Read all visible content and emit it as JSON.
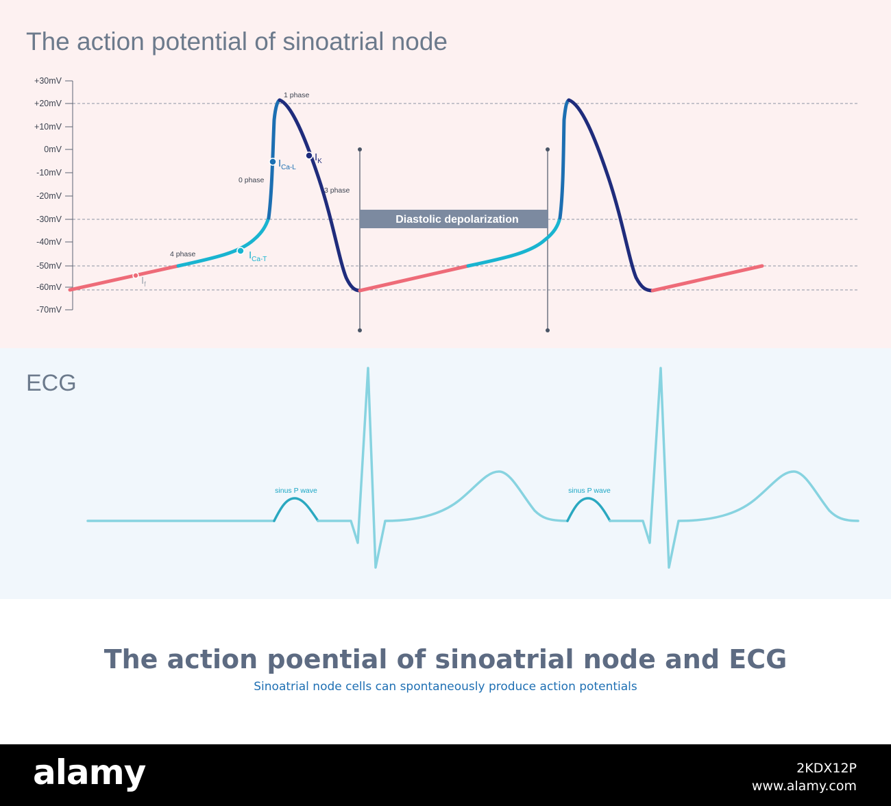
{
  "top_panel": {
    "title": "The action potential of sinoatrial node",
    "y_ticks": [
      "+30mV",
      "+20mV",
      "+10mV",
      "0mV",
      "-10mV",
      "-20mV",
      "-30mV",
      "-40mV",
      "-50mV",
      "-60mV",
      "-70mV"
    ],
    "phase_labels": {
      "phase_1": "1 phase",
      "phase_0": "0 phase",
      "phase_3": "3 phase",
      "phase_4": "4 phase"
    },
    "currents": {
      "ca_l": {
        "main": "I",
        "sub": "Ca-L"
      },
      "k": {
        "main": "I",
        "sub": "K"
      },
      "ca_t": {
        "main": "I",
        "sub": "Ca-T"
      },
      "f": {
        "main": "I",
        "sub": "f"
      }
    },
    "diastolic_label": "Diastolic depolarization"
  },
  "ecg_panel": {
    "title": "ECG",
    "p_wave_label_1": "sinus P wave",
    "p_wave_label_2": "sinus P wave"
  },
  "caption": {
    "title": "The action poential of sinoatrial node and ECG",
    "subtitle": "Sinoatrial node cells can spontaneously produce action potentials"
  },
  "footer": {
    "brand": "alamy",
    "image_id": "2KDX12P",
    "site": "www.alamy.com"
  },
  "colors": {
    "red_segment": "#ee6b78",
    "cyan_segment": "#19b4d0",
    "blue_upstroke": "#1c6fb2",
    "navy_repolarization": "#1f2c7c",
    "ecg_line": "#87d3e0",
    "p_wave": "#2aa8c0"
  }
}
